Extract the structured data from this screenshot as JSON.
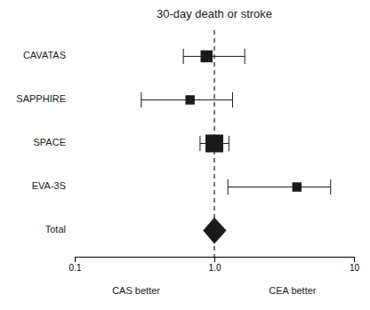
{
  "chart_data": {
    "type": "forest",
    "title": "30-day death or stroke",
    "categories": [
      "CAVATAS",
      "SAPPHIRE",
      "SPACE",
      "EVA-3S",
      "Total"
    ],
    "values": [
      0.88,
      0.67,
      1.0,
      3.9,
      1.0
    ],
    "ci_low": [
      0.6,
      0.3,
      0.79,
      1.25,
      0.83
    ],
    "ci_high": [
      1.65,
      1.35,
      1.27,
      6.8,
      1.22
    ],
    "sizes": [
      100,
      60,
      220,
      60,
      0
    ],
    "reference_line": 1.0,
    "annotations": [
      "CAS better",
      "CEA better"
    ],
    "color": "#1a1a1a",
    "log": "x",
    "xlim": [
      0.1,
      10
    ],
    "xticks": [
      0.1,
      {
        "value": 1.0,
        "label": "1.0"
      },
      10
    ],
    "grid": false
  }
}
